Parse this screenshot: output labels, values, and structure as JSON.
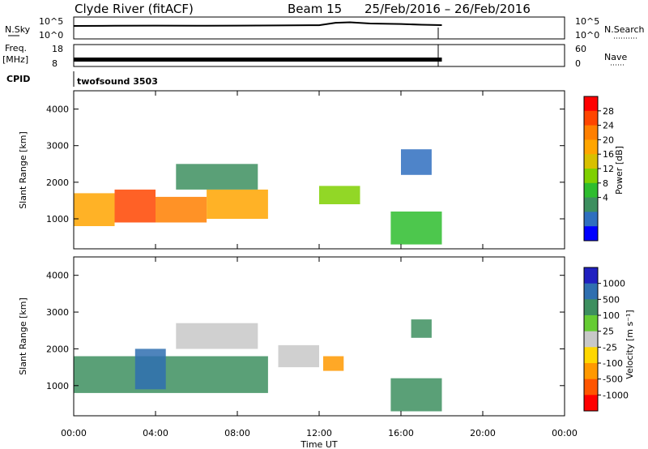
{
  "header": {
    "station": "Clyde River (fitACF)",
    "beam": "Beam 15",
    "dates": "25/Feb/2016 – 26/Feb/2016"
  },
  "strip_labels": {
    "nsky": "N.Sky",
    "nsky_ticks": [
      "10^5",
      "10^0"
    ],
    "nsearch": "N.Search",
    "nsearch_ticks": [
      "10^5",
      "10^0"
    ],
    "freq_title": "Freq.",
    "freq_unit": "[MHz]",
    "freq_ticks": [
      "18",
      "8"
    ],
    "nave": "Nave",
    "nave_ticks": [
      "60",
      "0"
    ],
    "cpid": "CPID",
    "cpid_value": "twofsound 3503"
  },
  "colorbars": {
    "power": {
      "label": "Power [dB]",
      "ticks": [
        "28",
        "24",
        "20",
        "16",
        "12",
        "8",
        "4"
      ],
      "colors": [
        "#ff0000",
        "#ff4500",
        "#ff7f00",
        "#ffa500",
        "#d8c000",
        "#7fd000",
        "#2ebd2e",
        "#3d8f5f",
        "#2f6fbf",
        "#0000ff"
      ]
    },
    "velocity": {
      "label": "Velocity [m s⁻¹]",
      "ticks": [
        "1000",
        "500",
        "100",
        "25",
        "-25",
        "-100",
        "-500",
        "-1000"
      ],
      "colors": [
        "#2020c0",
        "#2f6fb0",
        "#3d8f5f",
        "#66cc33",
        "#c8c8c8",
        "#ffd700",
        "#ff9900",
        "#ff5500",
        "#ff0000"
      ]
    }
  },
  "axes": {
    "y_label": "Slant Range [km]",
    "y_ticks": [
      "1000",
      "2000",
      "3000",
      "4000"
    ],
    "x_label": "Time UT",
    "x_ticks": [
      "00:00",
      "04:00",
      "08:00",
      "12:00",
      "16:00",
      "20:00",
      "00:00"
    ]
  },
  "chart_data": [
    {
      "type": "line",
      "name": "N.Sky / N.Search",
      "x_hours": [
        0,
        2,
        4,
        6,
        8,
        10,
        12,
        12.8,
        13.5,
        14.5,
        16,
        17,
        18
      ],
      "y": [
        1000,
        1100,
        1200,
        1100,
        1200,
        1300,
        1500,
        6000,
        8000,
        4000,
        3000,
        2000,
        1600
      ],
      "ylim": [
        1,
        100000
      ],
      "yscale": "log"
    },
    {
      "type": "area",
      "name": "Freq.",
      "x_hours": [
        0,
        18
      ],
      "freq_mhz_band": [
        10,
        12
      ],
      "ylim": [
        8,
        18
      ]
    },
    {
      "type": "heatmap",
      "name": "Power",
      "x_range_hours": [
        0,
        24
      ],
      "y_range_km": [
        180,
        4500
      ],
      "patches": [
        {
          "t": [
            0,
            2
          ],
          "r": [
            800,
            1700
          ],
          "db": 22
        },
        {
          "t": [
            2,
            4
          ],
          "r": [
            900,
            1800
          ],
          "db": 26
        },
        {
          "t": [
            4,
            6.5
          ],
          "r": [
            900,
            1600
          ],
          "db": 24
        },
        {
          "t": [
            6.5,
            9.5
          ],
          "r": [
            1000,
            1800
          ],
          "db": 20
        },
        {
          "t": [
            5,
            9
          ],
          "r": [
            1800,
            2500
          ],
          "db": 10
        },
        {
          "t": [
            12,
            14
          ],
          "r": [
            1400,
            1900
          ],
          "db": 14
        },
        {
          "t": [
            15.5,
            18
          ],
          "r": [
            300,
            1200
          ],
          "db": 12
        },
        {
          "t": [
            16,
            17.5
          ],
          "r": [
            2200,
            2900
          ],
          "db": 6
        }
      ]
    },
    {
      "type": "heatmap",
      "name": "Velocity",
      "x_range_hours": [
        0,
        24
      ],
      "y_range_km": [
        180,
        4500
      ],
      "patches": [
        {
          "t": [
            0,
            9.5
          ],
          "r": [
            800,
            1800
          ],
          "v": 150
        },
        {
          "t": [
            3,
            4.5
          ],
          "r": [
            900,
            2000
          ],
          "v": 600
        },
        {
          "t": [
            5,
            9
          ],
          "r": [
            2000,
            2700
          ],
          "v": 0
        },
        {
          "t": [
            10,
            12
          ],
          "r": [
            1500,
            2100
          ],
          "v": 0
        },
        {
          "t": [
            12.2,
            13.2
          ],
          "r": [
            1400,
            1800
          ],
          "v": -400
        },
        {
          "t": [
            15.5,
            18
          ],
          "r": [
            300,
            1200
          ],
          "v": 200
        },
        {
          "t": [
            16.5,
            17.5
          ],
          "r": [
            2300,
            2800
          ],
          "v": 150
        }
      ]
    }
  ]
}
